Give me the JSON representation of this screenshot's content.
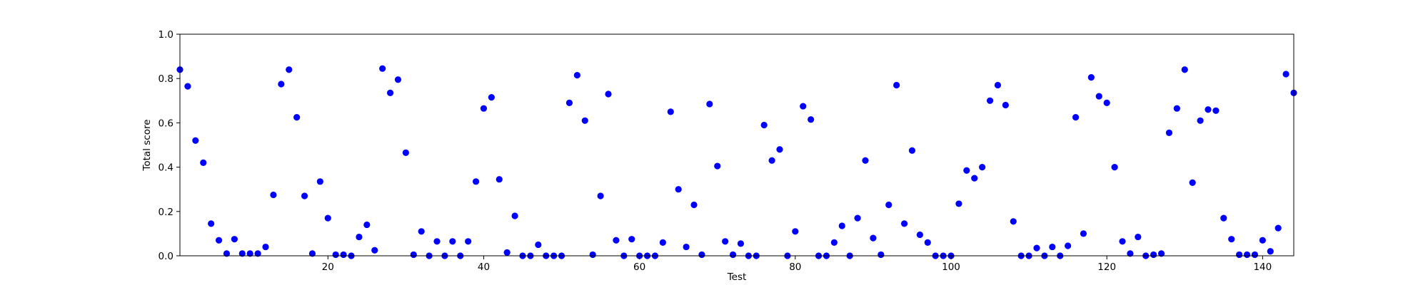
{
  "chart_data": {
    "type": "scatter",
    "xlabel": "Test",
    "ylabel": "Total score",
    "xlim": [
      1,
      144
    ],
    "ylim": [
      0.0,
      1.0
    ],
    "x_ticks": [
      20,
      40,
      60,
      80,
      100,
      120,
      140
    ],
    "y_ticks": [
      0.0,
      0.2,
      0.4,
      0.6,
      0.8,
      1.0
    ],
    "x_tick_labels": [
      "20",
      "40",
      "60",
      "80",
      "100",
      "120",
      "140"
    ],
    "y_tick_labels": [
      "0.0",
      "0.2",
      "0.4",
      "0.6",
      "0.8",
      "1.0"
    ],
    "grid": false,
    "marker_color": "#0000ff",
    "x": [
      1,
      2,
      3,
      4,
      5,
      6,
      7,
      8,
      9,
      10,
      11,
      12,
      13,
      14,
      15,
      16,
      17,
      18,
      19,
      20,
      21,
      22,
      23,
      24,
      25,
      26,
      27,
      28,
      29,
      30,
      31,
      32,
      33,
      34,
      35,
      36,
      37,
      38,
      39,
      40,
      41,
      42,
      43,
      44,
      45,
      46,
      47,
      48,
      49,
      50,
      51,
      52,
      53,
      54,
      55,
      56,
      57,
      58,
      59,
      60,
      61,
      62,
      63,
      64,
      65,
      66,
      67,
      68,
      69,
      70,
      71,
      72,
      73,
      74,
      75,
      76,
      77,
      78,
      79,
      80,
      81,
      82,
      83,
      84,
      85,
      86,
      87,
      88,
      89,
      90,
      91,
      92,
      93,
      94,
      95,
      96,
      97,
      98,
      99,
      100,
      101,
      102,
      103,
      104,
      105,
      106,
      107,
      108,
      109,
      110,
      111,
      112,
      113,
      114,
      115,
      116,
      117,
      118,
      119,
      120,
      121,
      122,
      123,
      124,
      125,
      126,
      127,
      128,
      129,
      130,
      131,
      132,
      133,
      134,
      135,
      136,
      137,
      138,
      139,
      140,
      141,
      142,
      143,
      144
    ],
    "y": [
      0.84,
      0.765,
      0.52,
      0.42,
      0.145,
      0.07,
      0.01,
      0.075,
      0.01,
      0.01,
      0.01,
      0.04,
      0.275,
      0.775,
      0.84,
      0.625,
      0.27,
      0.01,
      0.335,
      0.17,
      0.005,
      0.005,
      0.0,
      0.085,
      0.14,
      0.025,
      0.845,
      0.735,
      0.795,
      0.465,
      0.005,
      0.11,
      0.0,
      0.065,
      0.0,
      0.065,
      0.0,
      0.065,
      0.335,
      0.665,
      0.715,
      0.345,
      0.015,
      0.18,
      0.0,
      0.0,
      0.05,
      0.0,
      0.0,
      0.0,
      0.69,
      0.815,
      0.61,
      0.005,
      0.27,
      0.73,
      0.07,
      0.0,
      0.075,
      0.0,
      0.0,
      0.0,
      0.06,
      0.65,
      0.3,
      0.04,
      0.23,
      0.005,
      0.685,
      0.405,
      0.065,
      0.005,
      0.055,
      0.0,
      0.0,
      0.59,
      0.43,
      0.48,
      0.0,
      0.11,
      0.675,
      0.615,
      0.0,
      0.0,
      0.06,
      0.135,
      0.0,
      0.17,
      0.43,
      0.08,
      0.005,
      0.23,
      0.77,
      0.145,
      0.475,
      0.095,
      0.06,
      0.0,
      0.0,
      0.0,
      0.235,
      0.385,
      0.35,
      0.4,
      0.7,
      0.77,
      0.68,
      0.155,
      0.0,
      0.0,
      0.035,
      0.0,
      0.04,
      0.0,
      0.045,
      0.625,
      0.1,
      0.805,
      0.72,
      0.69,
      0.4,
      0.065,
      0.01,
      0.085,
      0.0,
      0.005,
      0.01,
      0.555,
      0.665,
      0.84,
      0.33,
      0.61,
      0.66,
      0.655,
      0.17,
      0.075,
      0.005,
      0.005,
      0.005,
      0.07,
      0.02,
      0.125,
      0.82,
      0.735
    ]
  }
}
